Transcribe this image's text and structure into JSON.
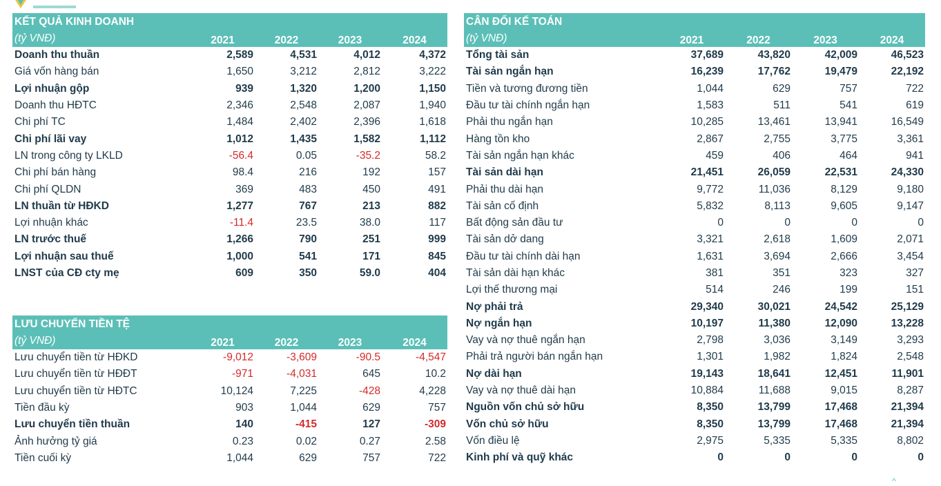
{
  "kqkd": {
    "title": "KẾT QUẢ KINH DOANH",
    "unit": "(tỷ VNĐ)",
    "years": [
      "2021",
      "2022",
      "2023",
      "2024"
    ],
    "rows": [
      {
        "label": "Doanh thu thuần",
        "bold": true,
        "values": [
          "2,589",
          "4,531",
          "4,012",
          "4,372"
        ]
      },
      {
        "label": "Giá vốn hàng bán",
        "bold": false,
        "values": [
          "1,650",
          "3,212",
          "2,812",
          "3,222"
        ]
      },
      {
        "label": "Lợi nhuận gộp",
        "bold": true,
        "values": [
          "939",
          "1,320",
          "1,200",
          "1,150"
        ]
      },
      {
        "label": "Doanh thu HĐTC",
        "bold": false,
        "values": [
          "2,346",
          "2,548",
          "2,087",
          "1,940"
        ]
      },
      {
        "label": "Chi phí TC",
        "bold": false,
        "values": [
          "1,484",
          "2,402",
          "2,396",
          "1,618"
        ]
      },
      {
        "label": "Chi phí lãi vay",
        "bold": true,
        "values": [
          "1,012",
          "1,435",
          "1,582",
          "1,112"
        ]
      },
      {
        "label": "LN trong công ty LKLD",
        "bold": false,
        "values": [
          "-56.4",
          "0.05",
          "-35.2",
          "58.2"
        ]
      },
      {
        "label": "Chi phí bán hàng",
        "bold": false,
        "values": [
          "98.4",
          "216",
          "192",
          "157"
        ]
      },
      {
        "label": "Chi phí QLDN",
        "bold": false,
        "values": [
          "369",
          "483",
          "450",
          "491"
        ]
      },
      {
        "label": "LN thuần từ HĐKD",
        "bold": true,
        "values": [
          "1,277",
          "767",
          "213",
          "882"
        ]
      },
      {
        "label": "Lợi nhuận khác",
        "bold": false,
        "values": [
          "-11.4",
          "23.5",
          "38.0",
          "117"
        ]
      },
      {
        "label": "LN trước thuế",
        "bold": true,
        "values": [
          "1,266",
          "790",
          "251",
          "999"
        ]
      },
      {
        "label": "Lợi nhuận sau thuế",
        "bold": true,
        "values": [
          "1,000",
          "541",
          "171",
          "845"
        ]
      },
      {
        "label": "LNST của CĐ cty mẹ",
        "bold": true,
        "values": [
          "609",
          "350",
          "59.0",
          "404"
        ]
      }
    ]
  },
  "lctt": {
    "title": "LƯU CHUYỂN TIỀN TỆ",
    "unit": "(tỷ VNĐ)",
    "years": [
      "2021",
      "2022",
      "2023",
      "2024"
    ],
    "rows": [
      {
        "label": "Lưu chuyển tiền từ HĐKD",
        "bold": false,
        "values": [
          "-9,012",
          "-3,609",
          "-90.5",
          "-4,547"
        ]
      },
      {
        "label": "Lưu chuyển tiền từ HĐĐT",
        "bold": false,
        "values": [
          "-971",
          "-4,031",
          "645",
          "10.2"
        ]
      },
      {
        "label": "Lưu chuyển tiền từ HĐTC",
        "bold": false,
        "values": [
          "10,124",
          "7,225",
          "-428",
          "4,228"
        ]
      },
      {
        "label": "Tiền đầu kỳ",
        "bold": false,
        "values": [
          "903",
          "1,044",
          "629",
          "757"
        ]
      },
      {
        "label": "Lưu chuyển tiền thuần",
        "bold": true,
        "values": [
          "140",
          "-415",
          "127",
          "-309"
        ]
      },
      {
        "label": "Ảnh hưởng tỷ giá",
        "bold": false,
        "values": [
          "0.23",
          "0.02",
          "0.27",
          "2.58"
        ]
      },
      {
        "label": "Tiền cuối kỳ",
        "bold": false,
        "values": [
          "1,044",
          "629",
          "757",
          "722"
        ]
      }
    ]
  },
  "cdkt": {
    "title": "CÂN ĐỐI KẾ TOÁN",
    "unit": "(tỷ VNĐ)",
    "years": [
      "2021",
      "2022",
      "2023",
      "2024"
    ],
    "rows": [
      {
        "label": "Tổng tài sản",
        "bold": true,
        "values": [
          "37,689",
          "43,820",
          "42,009",
          "46,523"
        ]
      },
      {
        "label": "Tài sản ngắn hạn",
        "bold": true,
        "values": [
          "16,239",
          "17,762",
          "19,479",
          "22,192"
        ]
      },
      {
        "label": "Tiền và tương đương tiền",
        "bold": false,
        "values": [
          "1,044",
          "629",
          "757",
          "722"
        ]
      },
      {
        "label": "Đầu tư tài chính ngắn hạn",
        "bold": false,
        "values": [
          "1,583",
          "511",
          "541",
          "619"
        ]
      },
      {
        "label": "Phải thu ngắn hạn",
        "bold": false,
        "values": [
          "10,285",
          "13,461",
          "13,941",
          "16,549"
        ]
      },
      {
        "label": "Hàng tồn kho",
        "bold": false,
        "values": [
          "2,867",
          "2,755",
          "3,775",
          "3,361"
        ]
      },
      {
        "label": "Tài sản ngắn hạn khác",
        "bold": false,
        "values": [
          "459",
          "406",
          "464",
          "941"
        ]
      },
      {
        "label": "Tài sản dài hạn",
        "bold": true,
        "values": [
          "21,451",
          "26,059",
          "22,531",
          "24,330"
        ]
      },
      {
        "label": "Phải thu dài hạn",
        "bold": false,
        "values": [
          "9,772",
          "11,036",
          "8,129",
          "9,180"
        ]
      },
      {
        "label": "Tài sản cố định",
        "bold": false,
        "values": [
          "5,832",
          "8,113",
          "9,605",
          "9,147"
        ]
      },
      {
        "label": "Bất động sản đầu tư",
        "bold": false,
        "values": [
          "0",
          "0",
          "0",
          "0"
        ]
      },
      {
        "label": "Tài sản dở dang",
        "bold": false,
        "values": [
          "3,321",
          "2,618",
          "1,609",
          "2,071"
        ]
      },
      {
        "label": "Đầu tư tài chính dài hạn",
        "bold": false,
        "values": [
          "1,631",
          "3,694",
          "2,666",
          "3,454"
        ]
      },
      {
        "label": "Tài sản dài hạn khác",
        "bold": false,
        "values": [
          "381",
          "351",
          "323",
          "327"
        ]
      },
      {
        "label": "Lợi thế thương mại",
        "bold": false,
        "values": [
          "514",
          "246",
          "199",
          "151"
        ]
      },
      {
        "label": "Nợ phải trả",
        "bold": true,
        "values": [
          "29,340",
          "30,021",
          "24,542",
          "25,129"
        ]
      },
      {
        "label": "Nợ ngắn hạn",
        "bold": true,
        "values": [
          "10,197",
          "11,380",
          "12,090",
          "13,228"
        ]
      },
      {
        "label": "Vay và nợ thuê ngắn hạn",
        "bold": false,
        "values": [
          "2,798",
          "3,036",
          "3,149",
          "3,293"
        ]
      },
      {
        "label": "Phải trả người bán ngắn hạn",
        "bold": false,
        "values": [
          "1,301",
          "1,982",
          "1,824",
          "2,548"
        ]
      },
      {
        "label": "Nợ dài hạn",
        "bold": true,
        "values": [
          "19,143",
          "18,641",
          "12,451",
          "11,901"
        ]
      },
      {
        "label": "Vay và nợ thuê dài hạn",
        "bold": false,
        "values": [
          "10,884",
          "11,688",
          "9,015",
          "8,287"
        ]
      },
      {
        "label": "Nguồn vốn chủ sở hữu",
        "bold": true,
        "values": [
          "8,350",
          "13,799",
          "17,468",
          "21,394"
        ]
      },
      {
        "label": "Vốn chủ sở hữu",
        "bold": true,
        "values": [
          "8,350",
          "13,799",
          "17,468",
          "21,394"
        ]
      },
      {
        "label": "Vốn điều lệ",
        "bold": false,
        "values": [
          "2,975",
          "5,335",
          "5,335",
          "8,802"
        ]
      },
      {
        "label": "Kinh phí và quỹ khác",
        "bold": true,
        "values": [
          "0",
          "0",
          "0",
          "0"
        ]
      }
    ]
  },
  "colors": {
    "header_bg": "#5bbfb7",
    "negative": "#d42a2a",
    "text": "#1f3a4a"
  },
  "icons": {
    "logo": "company-logo",
    "scroll": "chevron-up-icon"
  }
}
